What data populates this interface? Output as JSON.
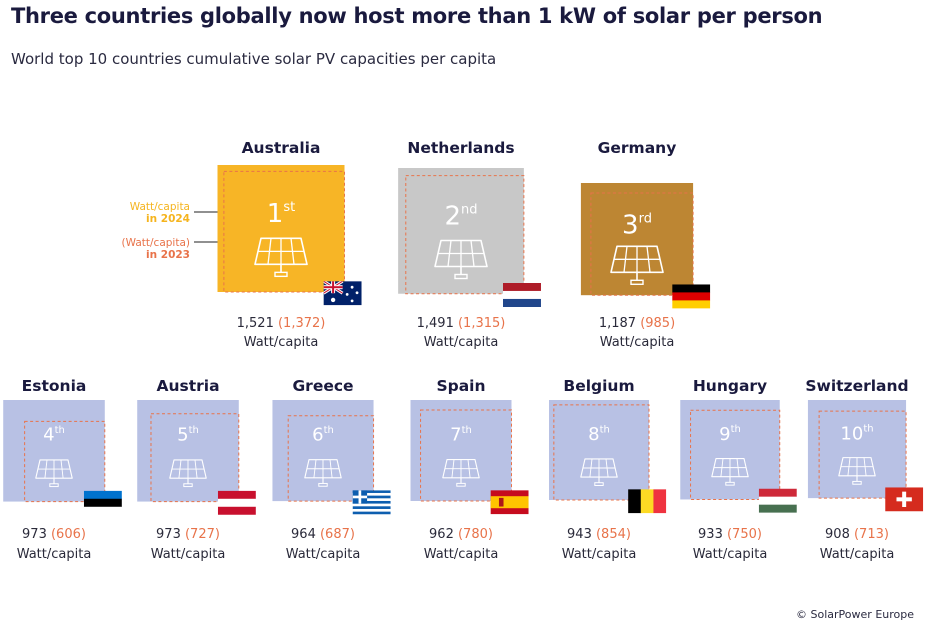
{
  "title": "Three countries globally now host more than 1 kW of solar per person",
  "subtitle": "World top 10 countries cumulative solar PV capacities per capita",
  "source": "© SolarPower Europe",
  "legend": {
    "current_line1": "Watt/capita",
    "current_line2": "in 2024",
    "previous_line1": "(Watt/capita)",
    "previous_line2": "in 2023"
  },
  "unit_label": "Watt/capita",
  "chart_data": {
    "type": "area",
    "title": "Three countries globally now host more than 1 kW of solar per person",
    "subtitle": "World top 10 countries cumulative solar PV capacities per capita",
    "unit": "Watt/capita",
    "series_names": [
      "in 2024",
      "in 2023"
    ],
    "countries": [
      {
        "name": "Australia",
        "rank": "1",
        "suffix": "st",
        "value_2024": 1521,
        "value_2023": 1372,
        "value_2024_text": "1,521",
        "value_2023_text": "(1,372)",
        "color": "#f7b526",
        "flag": "flag-australia"
      },
      {
        "name": "Netherlands",
        "rank": "2",
        "suffix": "nd",
        "value_2024": 1491,
        "value_2023": 1315,
        "value_2024_text": "1,491",
        "value_2023_text": "(1,315)",
        "color": "#c8c8c8",
        "flag": "flag-netherlands"
      },
      {
        "name": "Germany",
        "rank": "3",
        "suffix": "rd",
        "value_2024": 1187,
        "value_2023": 985,
        "value_2024_text": "1,187",
        "value_2023_text": "(985)",
        "color": "#bd8633",
        "flag": "flag-germany"
      },
      {
        "name": "Estonia",
        "rank": "4",
        "suffix": "th",
        "value_2024": 973,
        "value_2023": 606,
        "value_2024_text": "973",
        "value_2023_text": "(606)",
        "color": "#b8c1e4",
        "flag": "flag-estonia"
      },
      {
        "name": "Austria",
        "rank": "5",
        "suffix": "th",
        "value_2024": 973,
        "value_2023": 727,
        "value_2024_text": "973",
        "value_2023_text": "(727)",
        "color": "#b8c1e4",
        "flag": "flag-austria"
      },
      {
        "name": "Greece",
        "rank": "6",
        "suffix": "th",
        "value_2024": 964,
        "value_2023": 687,
        "value_2024_text": "964",
        "value_2023_text": "(687)",
        "color": "#b8c1e4",
        "flag": "flag-greece"
      },
      {
        "name": "Spain",
        "rank": "7",
        "suffix": "th",
        "value_2024": 962,
        "value_2023": 780,
        "value_2024_text": "962",
        "value_2023_text": "(780)",
        "color": "#b8c1e4",
        "flag": "flag-spain"
      },
      {
        "name": "Belgium",
        "rank": "8",
        "suffix": "th",
        "value_2024": 943,
        "value_2023": 854,
        "value_2024_text": "943",
        "value_2023_text": "(854)",
        "color": "#b8c1e4",
        "flag": "flag-belgium"
      },
      {
        "name": "Hungary",
        "rank": "9",
        "suffix": "th",
        "value_2024": 933,
        "value_2023": 750,
        "value_2024_text": "933",
        "value_2023_text": "(750)",
        "color": "#b8c1e4",
        "flag": "flag-hungary"
      },
      {
        "name": "Switzerland",
        "rank": "10",
        "suffix": "th",
        "value_2024": 908,
        "value_2023": 713,
        "value_2024_text": "908",
        "value_2023_text": "(713)",
        "color": "#b8c1e4",
        "flag": "flag-switzerland"
      }
    ]
  }
}
